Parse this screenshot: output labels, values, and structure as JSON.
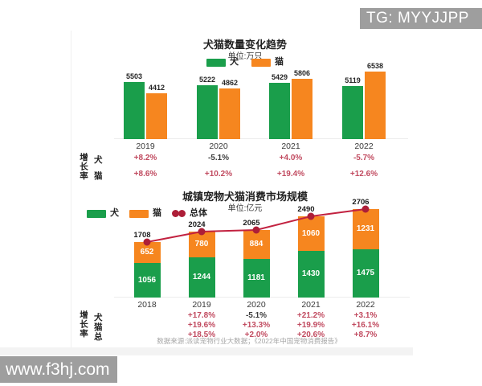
{
  "watermarks": {
    "top_right": "TG: MYYJJPP",
    "bottom_left": "www.f3hj.com"
  },
  "colors": {
    "dog": "#1a9e4b",
    "cat": "#f6861f",
    "line": "#c22240",
    "marker": "#ad1e38",
    "growth": "#c14b60",
    "growth_dark": "#3d3d3d",
    "watermark_bg": "#9e9e9e"
  },
  "chart_data": [
    {
      "type": "bar",
      "title": "犬猫数量变化趋势",
      "unit_label": "单位:万只",
      "categories": [
        "2019",
        "2020",
        "2021",
        "2022"
      ],
      "series": [
        {
          "name": "犬",
          "color_key": "dog",
          "values": [
            5503,
            5222,
            5429,
            5119
          ]
        },
        {
          "name": "猫",
          "color_key": "cat",
          "values": [
            4412,
            4862,
            5806,
            6538
          ]
        }
      ],
      "growth_label": "增长率",
      "growth_rows": [
        {
          "name": "犬",
          "values": [
            "+8.2%",
            "-5.1%",
            "+4.0%",
            "-5.7%"
          ],
          "dark_indices": [
            1
          ]
        },
        {
          "name": "猫",
          "values": [
            "+8.6%",
            "+10.2%",
            "+19.4%",
            "+12.6%"
          ],
          "dark_indices": []
        }
      ],
      "legend_position": "top-center",
      "grid": false
    },
    {
      "type": "stacked-bar-line",
      "title": "城镇宠物犬猫消费市场规模",
      "unit_label": "单位:亿元",
      "categories": [
        "2018",
        "2019",
        "2020",
        "2021",
        "2022"
      ],
      "series": [
        {
          "name": "犬",
          "color_key": "dog",
          "values": [
            1056,
            1244,
            1181,
            1430,
            1475
          ]
        },
        {
          "name": "猫",
          "color_key": "cat",
          "values": [
            652,
            780,
            884,
            1060,
            1231
          ]
        }
      ],
      "line_series": {
        "name": "总体",
        "values": [
          1708,
          2024,
          2065,
          2490,
          2706
        ]
      },
      "growth_label": "增长率",
      "growth_rows": [
        {
          "name": "犬",
          "values": [
            "",
            "+17.8%",
            "-5.1%",
            "+21.2%",
            "+3.1%"
          ],
          "dark_indices": [
            2
          ]
        },
        {
          "name": "猫",
          "values": [
            "",
            "+19.6%",
            "+13.3%",
            "+19.9%",
            "+16.1%"
          ],
          "dark_indices": []
        },
        {
          "name": "总",
          "values": [
            "",
            "+18.5%",
            "+2.0%",
            "+20.6%",
            "+8.7%"
          ],
          "dark_indices": []
        }
      ],
      "source": "数据来源:派读宠物行业大数据；《2022年中国宠物消费报告》",
      "legend_position": "top-left",
      "grid": false
    }
  ]
}
